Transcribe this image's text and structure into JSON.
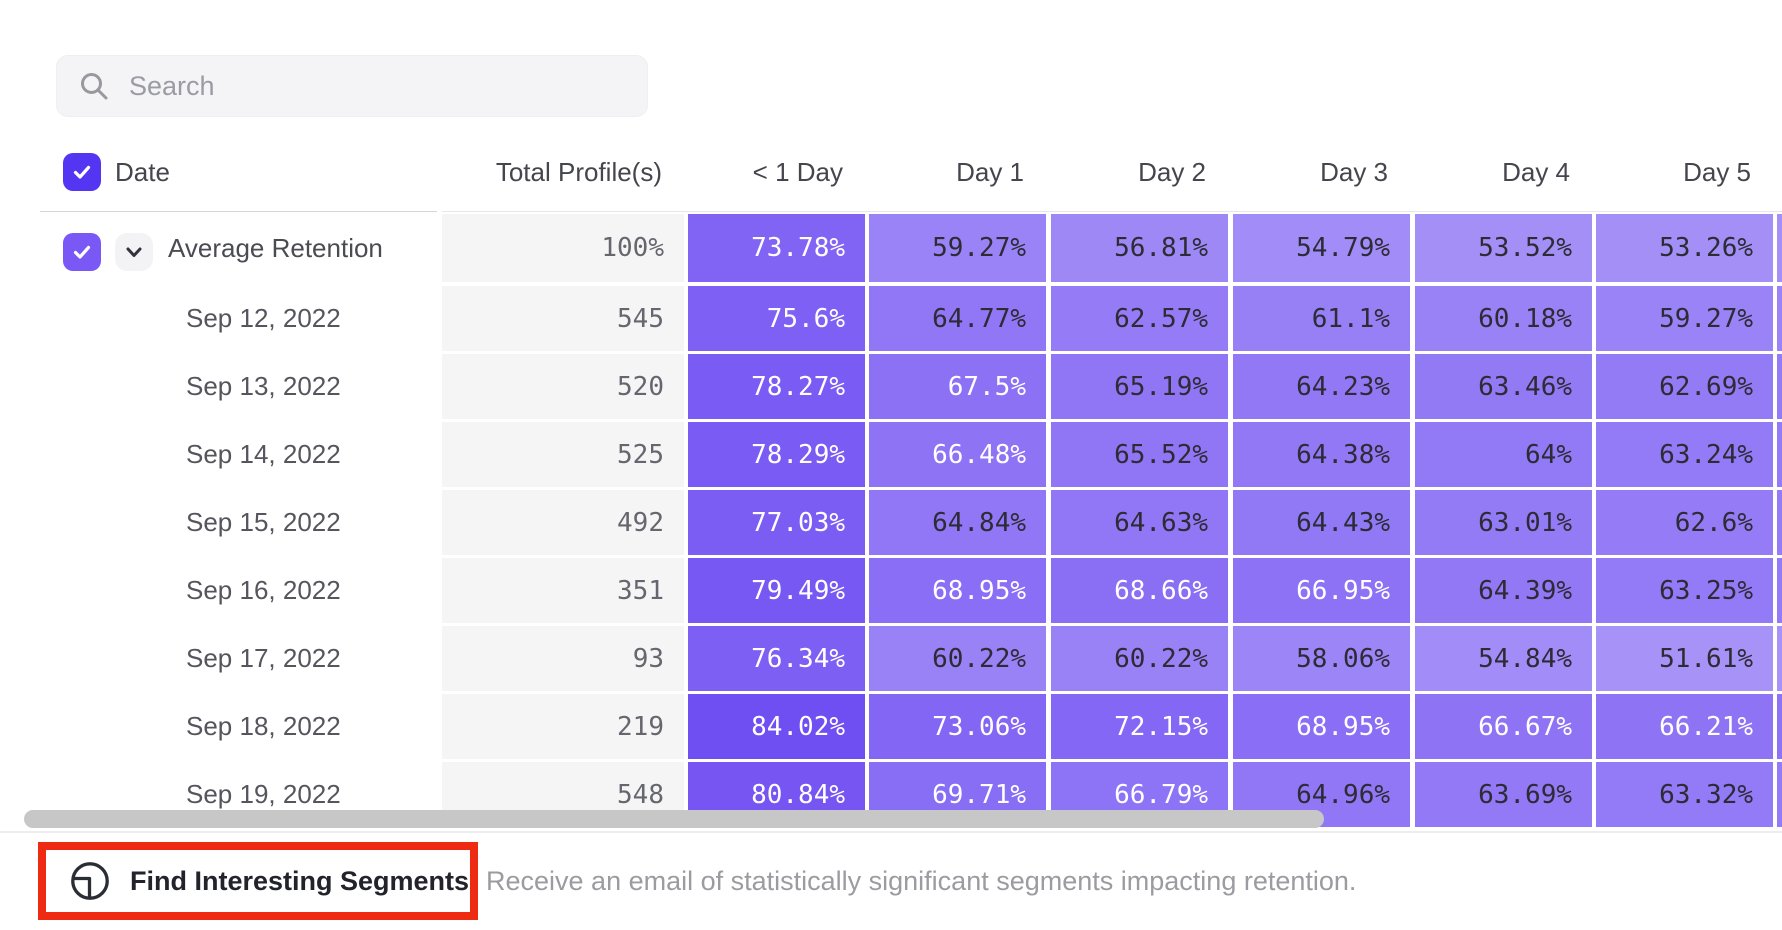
{
  "search": {
    "placeholder": "Search"
  },
  "table": {
    "select_all_checked": true,
    "columns": {
      "date": "Date",
      "total": "Total Profile(s)",
      "days": [
        "< 1 Day",
        "Day 1",
        "Day 2",
        "Day 3",
        "Day 4",
        "Day 5"
      ]
    },
    "rows": [
      {
        "label": "Average Retention",
        "type": "average",
        "checked": true,
        "total": "100%",
        "values": [
          73.78,
          59.27,
          56.81,
          54.79,
          53.52,
          53.26
        ]
      },
      {
        "label": "Sep 12, 2022",
        "type": "date",
        "total": "545",
        "values": [
          75.6,
          64.77,
          62.57,
          61.1,
          60.18,
          59.27
        ]
      },
      {
        "label": "Sep 13, 2022",
        "type": "date",
        "total": "520",
        "values": [
          78.27,
          67.5,
          65.19,
          64.23,
          63.46,
          62.69
        ]
      },
      {
        "label": "Sep 14, 2022",
        "type": "date",
        "total": "525",
        "values": [
          78.29,
          66.48,
          65.52,
          64.38,
          64,
          63.24
        ]
      },
      {
        "label": "Sep 15, 2022",
        "type": "date",
        "total": "492",
        "values": [
          77.03,
          64.84,
          64.63,
          64.43,
          63.01,
          62.6
        ]
      },
      {
        "label": "Sep 16, 2022",
        "type": "date",
        "total": "351",
        "values": [
          79.49,
          68.95,
          68.66,
          66.95,
          64.39,
          63.25
        ]
      },
      {
        "label": "Sep 17, 2022",
        "type": "date",
        "total": "93",
        "values": [
          76.34,
          60.22,
          60.22,
          58.06,
          54.84,
          51.61
        ]
      },
      {
        "label": "Sep 18, 2022",
        "type": "date",
        "total": "219",
        "values": [
          84.02,
          73.06,
          72.15,
          68.95,
          66.67,
          66.21
        ]
      },
      {
        "label": "Sep 19, 2022",
        "type": "date",
        "total": "548",
        "values": [
          80.84,
          69.71,
          66.79,
          64.96,
          63.69,
          63.32
        ]
      }
    ],
    "next_column_clipped": true
  },
  "footer": {
    "button_label": "Find Interesting Segments",
    "description": "Receive an email of statistically significant segments impacting retention."
  },
  "colors": {
    "cell_base_purple": "#552DF0",
    "header_checkbox": "#5435F2",
    "row_checkbox": "#7A58F5",
    "cell_text_dark": "#2D2B35",
    "cell_text_light": "#FFFFFF",
    "white_text_threshold": 66,
    "total_cell_bg": "#F5F5F6",
    "total_cell_text": "#66666E",
    "highlight_red": "#EE2A12",
    "scrollbar_thumb": "#C7C7C7"
  }
}
